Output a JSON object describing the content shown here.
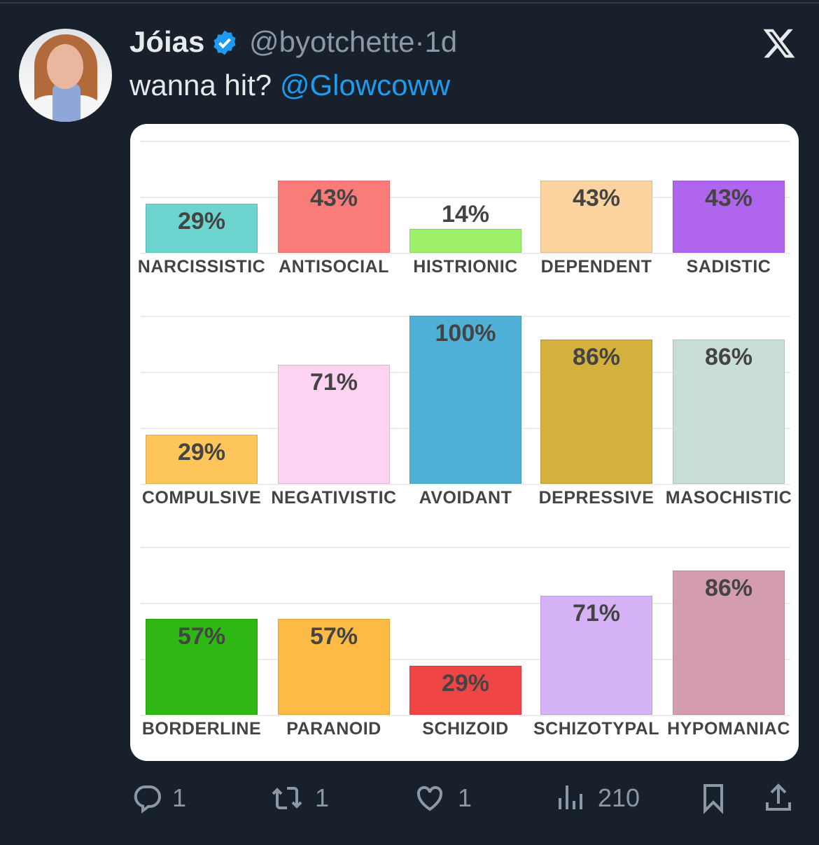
{
  "tweet": {
    "author_name": "Jóias",
    "handle": "@byotchette",
    "separator": "·",
    "time": "1d",
    "text": "wanna hit?",
    "mention": "@Glowcoww",
    "verified": true,
    "accent": "#1d9bf0"
  },
  "actions": {
    "replies": "1",
    "reposts": "1",
    "likes": "1",
    "views": "210"
  },
  "chart_data": {
    "type": "bar",
    "unit": "%",
    "rows": [
      [
        {
          "label": "NARCISSISTIC",
          "value": 29,
          "text": "29%",
          "color": "#6dd5cf"
        },
        {
          "label": "ANTISOCIAL",
          "value": 43,
          "text": "43%",
          "color": "#fa7c79"
        },
        {
          "label": "HISTRIONIC",
          "value": 14,
          "text": "14%",
          "color": "#9ef06a"
        },
        {
          "label": "DEPENDENT",
          "value": 43,
          "text": "43%",
          "color": "#fdd3a0"
        },
        {
          "label": "SADISTIC",
          "value": 43,
          "text": "43%",
          "color": "#b065ef"
        }
      ],
      [
        {
          "label": "COMPULSIVE",
          "value": 29,
          "text": "29%",
          "color": "#fdc55a"
        },
        {
          "label": "NEGATIVISTIC",
          "value": 71,
          "text": "71%",
          "color": "#fdd3f1"
        },
        {
          "label": "AVOIDANT",
          "value": 100,
          "text": "100%",
          "color": "#4fb0d8"
        },
        {
          "label": "DEPRESSIVE",
          "value": 86,
          "text": "86%",
          "color": "#d4b03e"
        },
        {
          "label": "MASOCHISTIC",
          "value": 86,
          "text": "86%",
          "color": "#c9dfd6"
        }
      ],
      [
        {
          "label": "BORDERLINE",
          "value": 57,
          "text": "57%",
          "color": "#2fb813"
        },
        {
          "label": "PARANOID",
          "value": 57,
          "text": "57%",
          "color": "#fdbb45"
        },
        {
          "label": "SCHIZOID",
          "value": 29,
          "text": "29%",
          "color": "#f04545"
        },
        {
          "label": "SCHIZOTYPAL",
          "value": 71,
          "text": "71%",
          "color": "#d6b3f7"
        },
        {
          "label": "HYPOMANIAC",
          "value": 86,
          "text": "86%",
          "color": "#d49dad"
        }
      ]
    ]
  }
}
